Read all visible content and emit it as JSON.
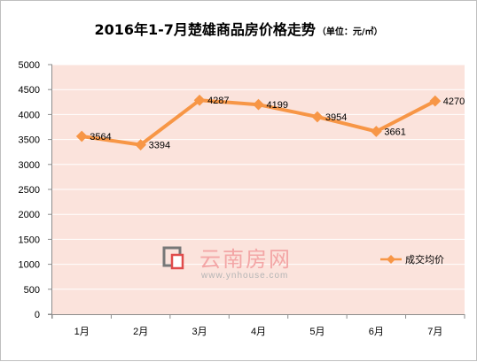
{
  "chart_data": {
    "type": "line",
    "title": "2016年1-7月楚雄商品房价格走势",
    "title_unit": "（单位：元/㎡）",
    "categories": [
      "1月",
      "2月",
      "3月",
      "4月",
      "5月",
      "6月",
      "7月"
    ],
    "series": [
      {
        "name": "成交均价",
        "values": [
          3564,
          3394,
          4287,
          4199,
          3954,
          3661,
          4270
        ]
      }
    ],
    "ylim": [
      0,
      5000
    ],
    "yticks": [
      0,
      500,
      1000,
      1500,
      2000,
      2500,
      3000,
      3500,
      4000,
      4500,
      5000
    ],
    "grid": true,
    "legend_position": "right",
    "colors": {
      "series": "#f79646",
      "plot_background": "#fbe3dc",
      "gridline": "#ffffff"
    }
  },
  "watermark": {
    "brand": "云南房网",
    "url": "www.ynhouse.com"
  }
}
